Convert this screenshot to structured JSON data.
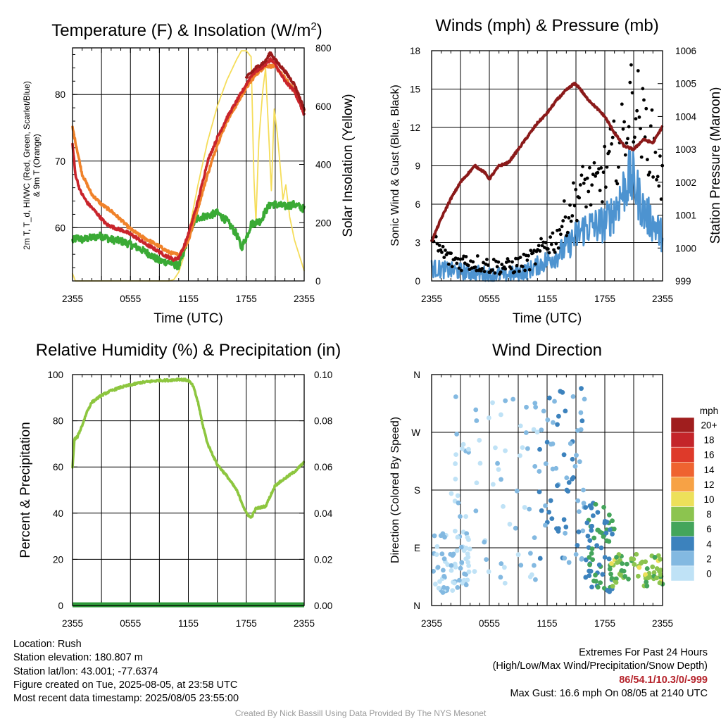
{
  "chart_data": [
    {
      "type": "line",
      "title": "Temperature (F) & Insolation (W/m²)",
      "xlabel": "Time (UTC)",
      "ylabel": "2m T, T_d, HI/WC (Red, Green, Scarlet/Blue) & 9m T (Orange)",
      "y2label": "Solar Insolation (Yellow)",
      "x_ticks": [
        "2355",
        "0555",
        "1155",
        "1755",
        "2355"
      ],
      "x_range_hours": [
        0,
        24
      ],
      "ylim": [
        52,
        87
      ],
      "y_ticks": [
        60,
        70,
        80
      ],
      "y2lim": [
        0,
        800
      ],
      "y2_ticks": [
        0,
        200,
        400,
        600,
        800
      ],
      "grid": true,
      "series": [
        {
          "color": "#c9242b",
          "axis": "left",
          "x": [
            0,
            0.3,
            0.8,
            1.5,
            2.5,
            3.5,
            4.5,
            5.5,
            6.5,
            7.5,
            8.5,
            9.5,
            10.5,
            11,
            11.5,
            12,
            12.5,
            13,
            13.5,
            14,
            15,
            16,
            17,
            18,
            18.5,
            19,
            20,
            20.5,
            21,
            22,
            23,
            24
          ],
          "y": [
            72.5,
            68,
            65.5,
            63.8,
            62.2,
            60.5,
            59.9,
            59.4,
            58.6,
            57.6,
            56.8,
            55.9,
            55.2,
            55.5,
            57,
            59,
            61.5,
            64,
            67,
            70,
            73.5,
            76.5,
            79,
            81.5,
            82.8,
            83.5,
            84.5,
            85.3,
            84.5,
            82,
            80.5,
            77
          ]
        },
        {
          "color": "#9a1a1a",
          "axis": "left",
          "x": [
            18,
            19,
            20,
            20.5,
            21,
            22,
            23,
            24
          ],
          "y": [
            82.5,
            84,
            85,
            86.3,
            85.2,
            83.5,
            81.5,
            77.8
          ]
        },
        {
          "color": "#f0822a",
          "axis": "left",
          "x": [
            0,
            0.5,
            1,
            2,
            3,
            4,
            5,
            6,
            7,
            8,
            9,
            10,
            11,
            11.5,
            12,
            12.5,
            13,
            14,
            15,
            16,
            17,
            18,
            19,
            20,
            21,
            22,
            23,
            24
          ],
          "y": [
            75,
            71.5,
            68,
            65,
            63.5,
            62.5,
            61.2,
            59.8,
            58.8,
            58,
            57.2,
            56.3,
            55.9,
            56.8,
            58,
            60.5,
            63,
            68,
            72.5,
            76,
            78.5,
            81,
            83,
            84.3,
            84.2,
            82.5,
            80.5,
            77.5
          ]
        },
        {
          "color": "#3aaa35",
          "axis": "left",
          "x": [
            0,
            0.5,
            1,
            2,
            3,
            4,
            5,
            6,
            7,
            8,
            9,
            10,
            11,
            11.5,
            12,
            12.5,
            13,
            14,
            15,
            16,
            17,
            17.5,
            18,
            18.5,
            19,
            19.5,
            20,
            20.5,
            21,
            22,
            23,
            24
          ],
          "y": [
            58,
            58.5,
            58.2,
            58.5,
            58.8,
            58.2,
            58,
            57.5,
            56.8,
            56,
            55,
            54.8,
            54.2,
            56,
            58.8,
            60.5,
            61.5,
            61.8,
            62.2,
            61,
            59,
            57,
            58.5,
            60.5,
            60.8,
            61,
            62.5,
            63.5,
            63.5,
            63.2,
            63.5,
            62.8
          ]
        },
        {
          "color": "#f5dd5a",
          "axis": "right",
          "x": [
            0,
            0.3,
            1,
            4,
            8,
            10,
            10.5,
            11,
            11.5,
            12,
            13,
            14,
            15,
            16,
            17,
            17.5,
            18,
            18.5,
            18.8,
            19,
            19.3,
            19.7,
            20,
            20.3,
            20.6,
            20.9,
            21.2,
            21.5,
            21.8,
            22.1,
            22.5,
            23,
            24
          ],
          "y": [
            25,
            0,
            0,
            0,
            0,
            0,
            5,
            30,
            80,
            160,
            330,
            480,
            600,
            690,
            760,
            790,
            790,
            770,
            350,
            200,
            480,
            650,
            730,
            520,
            310,
            590,
            510,
            400,
            280,
            330,
            220,
            140,
            35
          ]
        }
      ]
    },
    {
      "type": "line",
      "title": "Winds (mph) & Pressure (mb)",
      "xlabel": "Time (UTC)",
      "ylabel": "Sonic Wind & Gust (Blue, Black)",
      "y2label": "Station Pressure (Maroon)",
      "x_ticks": [
        "2355",
        "0555",
        "1155",
        "1755",
        "2355"
      ],
      "x_range_hours": [
        0,
        24
      ],
      "ylim": [
        0,
        18
      ],
      "y_ticks": [
        0,
        3,
        6,
        9,
        12,
        15,
        18
      ],
      "y2lim": [
        999,
        1006
      ],
      "y2_ticks": [
        999,
        1000,
        1001,
        1002,
        1003,
        1004,
        1005,
        1006
      ],
      "grid": true,
      "series": [
        {
          "color": "#8b1a1a",
          "axis": "right",
          "x": [
            0,
            1,
            2,
            3,
            4.5,
            5.5,
            6,
            7,
            8,
            9,
            10,
            11,
            12,
            13,
            14,
            14.8,
            15.3,
            16,
            17,
            18,
            19,
            20,
            21,
            22,
            23,
            24
          ],
          "y": [
            1000.2,
            1000.9,
            1001.5,
            1002,
            1002.5,
            1002.3,
            1002.1,
            1002.5,
            1002.6,
            1003,
            1003.4,
            1003.8,
            1004.1,
            1004.5,
            1004.8,
            1005,
            1004.9,
            1004.6,
            1004.3,
            1004,
            1003.5,
            1003.1,
            1003,
            1003.3,
            1003.2,
            1003.7
          ]
        },
        {
          "color": "#4d93d0",
          "axis": "left",
          "style": "noisy",
          "x": [
            0,
            2,
            4,
            6,
            7,
            8,
            9,
            10,
            11,
            12,
            13,
            14,
            15,
            16,
            17,
            18,
            19,
            20,
            20.5,
            21,
            22,
            23,
            24
          ],
          "y": [
            1,
            0.8,
            0.7,
            0.5,
            0.5,
            0.5,
            0.6,
            0.8,
            1.2,
            1.6,
            2,
            2.6,
            3.5,
            4.2,
            4.3,
            4.5,
            5.5,
            7.2,
            8,
            7.8,
            5.5,
            4.5,
            3.5
          ]
        },
        {
          "color": "#000000",
          "axis": "left",
          "style": "points",
          "x": [
            0,
            2,
            4,
            6,
            8,
            10,
            11,
            12,
            13,
            13.5,
            14,
            15,
            16,
            17,
            18,
            18.5,
            19,
            19.5,
            20,
            20.5,
            21,
            22,
            23,
            24
          ],
          "y": [
            3,
            1.6,
            1.5,
            1.2,
            1.1,
            1.5,
            2,
            3,
            3.2,
            4.5,
            5,
            6.5,
            7.5,
            7.2,
            8.5,
            9.5,
            10,
            10.5,
            11.5,
            13.5,
            14.5,
            12,
            10.5,
            7.5
          ]
        }
      ]
    },
    {
      "type": "line",
      "title": "Relative Humidity (%) & Precipitation (in)",
      "xlabel": "",
      "ylabel": "Percent & Precipitation",
      "x_ticks": [
        "2355",
        "0555",
        "1155",
        "1755",
        "2355"
      ],
      "x_range_hours": [
        0,
        24
      ],
      "ylim": [
        0,
        100
      ],
      "y_ticks": [
        0,
        20,
        40,
        60,
        80,
        100
      ],
      "y2lim": [
        0,
        0.1
      ],
      "y2_ticks": [
        "0.00",
        "0.02",
        "0.04",
        "0.06",
        "0.08",
        "0.10"
      ],
      "grid": true,
      "series": [
        {
          "color": "#8dc63f",
          "axis": "left",
          "x": [
            0,
            0.2,
            0.5,
            1,
            1.5,
            2,
            3,
            4,
            5,
            6,
            7,
            8,
            9,
            10,
            11,
            12,
            12.5,
            13,
            13.5,
            14,
            15,
            16,
            17,
            17.5,
            18,
            18.5,
            19,
            20,
            21,
            22,
            23,
            24
          ],
          "y": [
            60,
            72,
            73,
            78,
            84,
            88,
            91,
            93,
            94.5,
            95.5,
            96.5,
            97,
            97.5,
            97.5,
            98,
            97.5,
            95,
            88,
            78,
            70,
            61,
            56,
            50,
            45,
            40,
            38,
            42,
            43,
            52,
            55,
            58,
            62
          ]
        },
        {
          "color": "#2e9a3a",
          "axis": "right",
          "x": [
            0,
            24
          ],
          "y": [
            0,
            0
          ]
        }
      ]
    },
    {
      "type": "scatter",
      "title": "Wind Direction",
      "ylabel": "Direction (Colored By Speed)",
      "x_ticks": [
        "2355",
        "0555",
        "1155",
        "1755",
        "2355"
      ],
      "x_range_hours": [
        0,
        24
      ],
      "y_ticks": [
        "N",
        "E",
        "S",
        "W",
        "N"
      ],
      "ylim_deg": [
        0,
        360
      ],
      "grid": true,
      "colorbar": {
        "title": "mph",
        "labels": [
          "20+",
          "18",
          "16",
          "14",
          "12",
          "10",
          "8",
          "6",
          "4",
          "2",
          "0"
        ],
        "colors": [
          "#a01e1e",
          "#c4252a",
          "#de3a2a",
          "#ef6330",
          "#f7a245",
          "#ede05a",
          "#8cc44f",
          "#44a55b",
          "#3c82bd",
          "#83b9e1",
          "#bfe2f6"
        ]
      },
      "clusters": [
        {
          "x": [
            0,
            4
          ],
          "deg": [
            20,
            120
          ],
          "speed_mph": [
            0,
            2
          ]
        },
        {
          "x": [
            2,
            11
          ],
          "deg": [
            10,
            330
          ],
          "speed_mph": [
            0,
            2
          ]
        },
        {
          "x": [
            11,
            16
          ],
          "deg": [
            60,
            340
          ],
          "speed_mph": [
            2,
            4
          ]
        },
        {
          "x": [
            16,
            19
          ],
          "deg": [
            20,
            160
          ],
          "speed_mph": [
            4,
            6
          ]
        },
        {
          "x": [
            18.5,
            24
          ],
          "deg": [
            30,
            80
          ],
          "speed_mph": [
            6,
            10
          ]
        }
      ]
    }
  ],
  "info": {
    "location": "Location: Rush",
    "elevation": "Station elevation: 180.807 m",
    "latlon": "Station lat/lon: 43.001; -77.6374",
    "created": "Figure created on Tue, 2025-08-05, at 23:58 UTC",
    "recent": "Most recent data timestamp: 2025/08/05 23:55:00"
  },
  "extremes": {
    "title": "Extremes For Past 24 Hours",
    "subtitle": "(High/Low/Max Wind/Precipitation/Snow Depth)",
    "values": "86/54.1/10.3/0/-999",
    "gust": "Max Gust: 16.6 mph On 08/05 at 2140 UTC"
  },
  "credit": "Created By Nick Bassill Using Data Provided By The NYS Mesonet"
}
